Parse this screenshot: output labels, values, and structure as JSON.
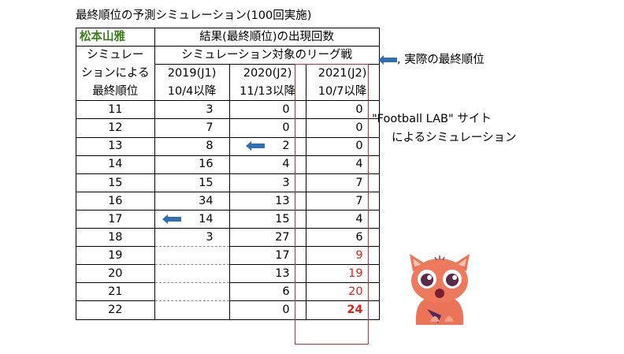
{
  "title": "最終順位の予測シミュレーション(100回実施)",
  "header": {
    "team": "松本山雅",
    "result_heading": "結果(最終順位)の出現回数",
    "sim_label_1": "シミュレー",
    "sim_label_2": "ションによる",
    "sim_label_3": "最終順位",
    "target_league": "シミュレーション対象のリーグ戦",
    "col1_season": "2019(J1)",
    "col1_date": "10/4以降",
    "col2_season": "2020(J2)",
    "col2_date": "11/13以降",
    "col3_season": "2021(J2)",
    "col3_date": "10/7以降"
  },
  "legend": {
    "arrow_text": ", 実際の最終順位",
    "arrow_color": "#2f6fb8"
  },
  "source_note": {
    "line1": "\"Football LAB\" サイト",
    "line2": "によるシミュレーション"
  },
  "rows": [
    {
      "rank": "11",
      "y2019": "3",
      "y2020": "0",
      "y2021": "0"
    },
    {
      "rank": "12",
      "y2019": "7",
      "y2020": "0",
      "y2021": "0"
    },
    {
      "rank": "13",
      "y2019": "8",
      "y2020": "2",
      "y2021": "0"
    },
    {
      "rank": "14",
      "y2019": "16",
      "y2020": "4",
      "y2021": "4"
    },
    {
      "rank": "15",
      "y2019": "15",
      "y2020": "3",
      "y2021": "7"
    },
    {
      "rank": "16",
      "y2019": "34",
      "y2020": "13",
      "y2021": "7"
    },
    {
      "rank": "17",
      "y2019": "14",
      "y2020": "15",
      "y2021": "4"
    },
    {
      "rank": "18",
      "y2019": "3",
      "y2020": "27",
      "y2021": "6"
    },
    {
      "rank": "19",
      "y2019": "",
      "y2020": "17",
      "y2021": "9"
    },
    {
      "rank": "20",
      "y2019": "",
      "y2020": "13",
      "y2021": "19"
    },
    {
      "rank": "21",
      "y2019": "",
      "y2020": "6",
      "y2021": "20"
    },
    {
      "rank": "22",
      "y2019": "",
      "y2020": "0",
      "y2021": "24"
    }
  ],
  "actual_finish": {
    "2019": "17",
    "2020": "13"
  },
  "colors": {
    "team_green": "#3a7d1a",
    "highlight_red": "#e0201b",
    "frame_red": "#d8262a"
  }
}
